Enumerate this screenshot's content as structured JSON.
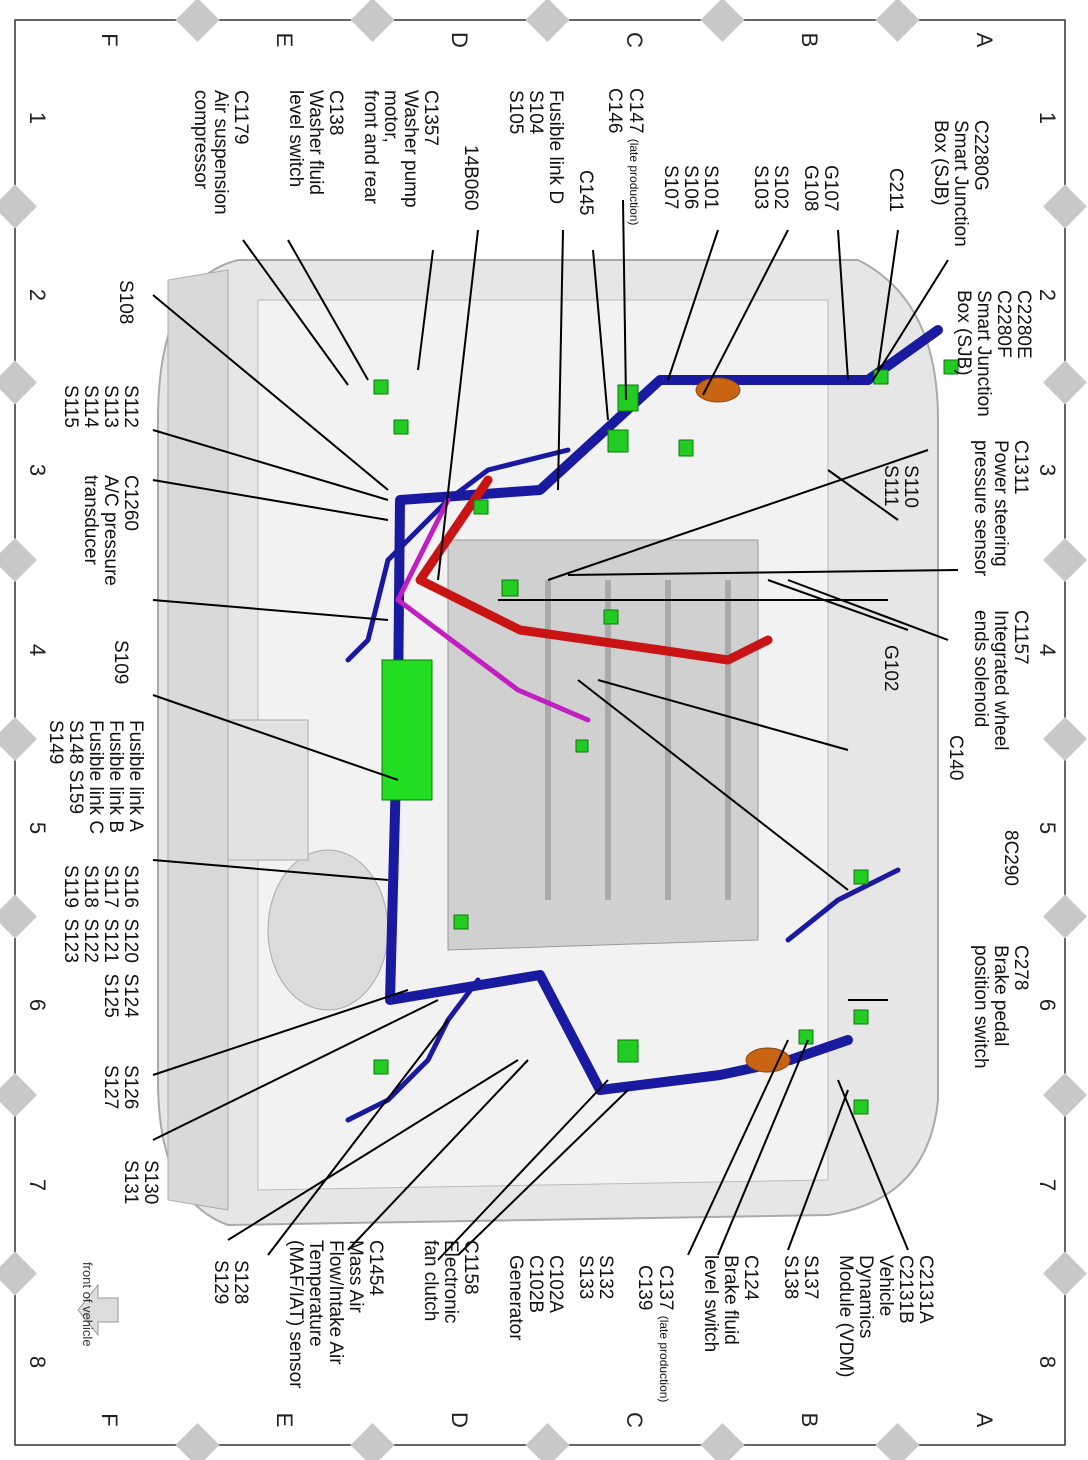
{
  "grid": {
    "columns": [
      "1",
      "2",
      "3",
      "4",
      "5",
      "6",
      "7",
      "8"
    ],
    "rows": [
      "A",
      "B",
      "C",
      "D",
      "E",
      "F"
    ]
  },
  "colors": {
    "harness": "#1a1aa0",
    "power": "#c81414",
    "connector": "#22cc22",
    "grommet": "#c86414",
    "aux": "#c020c0",
    "body": "#d8d8d8"
  },
  "labels": {
    "c2280g": "C2280G\nSmart Junction\nBox (SJB)",
    "c2280e": "C2280E\nC2280F\nSmart Junction\nBox (SJB)",
    "c211": "C211",
    "g107": "G107\nG108",
    "s102": "S102\nS103",
    "s101": "S101\nS106\nS107",
    "c147": "C147",
    "c147_note": "(late production)",
    "c146": "C146",
    "c145": "C145",
    "fusible_d": "Fusible link D\nS104\nS105",
    "b14b060": "14B060",
    "c1357": "C1357\nWasher pump\nmotor,\nfront and rear",
    "c138": "C138\nWasher fluid\nlevel switch",
    "c1179": "C1179\nAir suspension\ncompressor",
    "s108": "S108",
    "s112": "S112\nS113\nS114\nS115",
    "c1260": "C1260\nA/C pressure\ntransducer",
    "s109": "S109",
    "fusible_abc": "Fusible link A\nFusible link B\nFusible link C\nS148 S159\nS149",
    "s116": "S116  S120  S124\nS117  S121  S125\nS118  S122\nS119  S123",
    "s126": "S126\nS127",
    "s130": "S130\nS131",
    "s128": "S128\nS129",
    "c1454": "C1454\nMass Air\nFlow/Intake Air\nTemperature\n(MAF/IAT) sensor",
    "c1158": "C1158\nElectronic\nfan clutch",
    "c102": "C102A\nC102B\nGenerator",
    "s132": "S132\nS133",
    "c137": "C137",
    "c137_note": "(late production)",
    "c139": "C139",
    "c124": "C124\nBrake fluid\nlevel switch",
    "s137": "S137\nS138",
    "c2131": "C2131A\nC2131B\nVehicle\nDynamics\nModule (VDM)",
    "c278": "C278\nBrake pedal\nposition switch",
    "e8c290": "8C290",
    "c140": "C140",
    "c1157": "C1157\nIntegrated wheel\nends solenoid",
    "g102": "G102",
    "c1311": "C1311\nPower steering\npressure sensor",
    "s110": "S110\nS111",
    "front": "front of vehicle"
  }
}
